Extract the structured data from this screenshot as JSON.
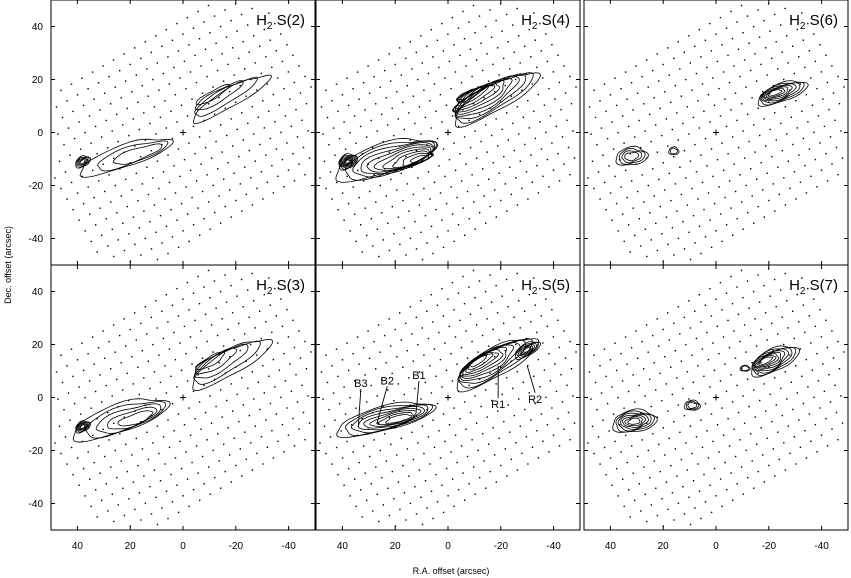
{
  "figure": {
    "xlabel": "R.A. offset (arcsec)",
    "ylabel": "Dec. offset (arcsec)",
    "xlim": [
      50,
      -50
    ],
    "ylim": [
      -50,
      50
    ],
    "x_ticks": [
      40,
      20,
      0,
      -20,
      -40
    ],
    "y_ticks": [
      40,
      20,
      0,
      -20,
      -40
    ]
  },
  "panels": [
    {
      "id": "p1",
      "title_main": "H",
      "title_sub": "2",
      "title_rest": " S(2)"
    },
    {
      "id": "p2",
      "title_main": "H",
      "title_sub": "2",
      "title_rest": " S(4)"
    },
    {
      "id": "p3",
      "title_main": "H",
      "title_sub": "2",
      "title_rest": " S(6)"
    },
    {
      "id": "p4",
      "title_main": "H",
      "title_sub": "2",
      "title_rest": " S(3)"
    },
    {
      "id": "p5",
      "title_main": "H",
      "title_sub": "2",
      "title_rest": " S(5)"
    },
    {
      "id": "p6",
      "title_main": "H",
      "title_sub": "2",
      "title_rest": " S(7)"
    }
  ],
  "annotations": [
    {
      "label": "B3",
      "text_x": 33,
      "text_y": 4,
      "target_x": 34,
      "target_y": -11
    },
    {
      "label": "B2",
      "text_x": 23,
      "text_y": 5,
      "target_x": 27,
      "target_y": -10
    },
    {
      "label": "B1",
      "text_x": 11,
      "text_y": 7,
      "target_x": 12,
      "target_y": -5
    },
    {
      "label": "R1",
      "text_x": -19,
      "text_y": -4,
      "target_x": -19,
      "target_y": 12
    },
    {
      "label": "R2",
      "text_x": -33,
      "text_y": -2,
      "target_x": -30,
      "target_y": 12
    }
  ]
}
